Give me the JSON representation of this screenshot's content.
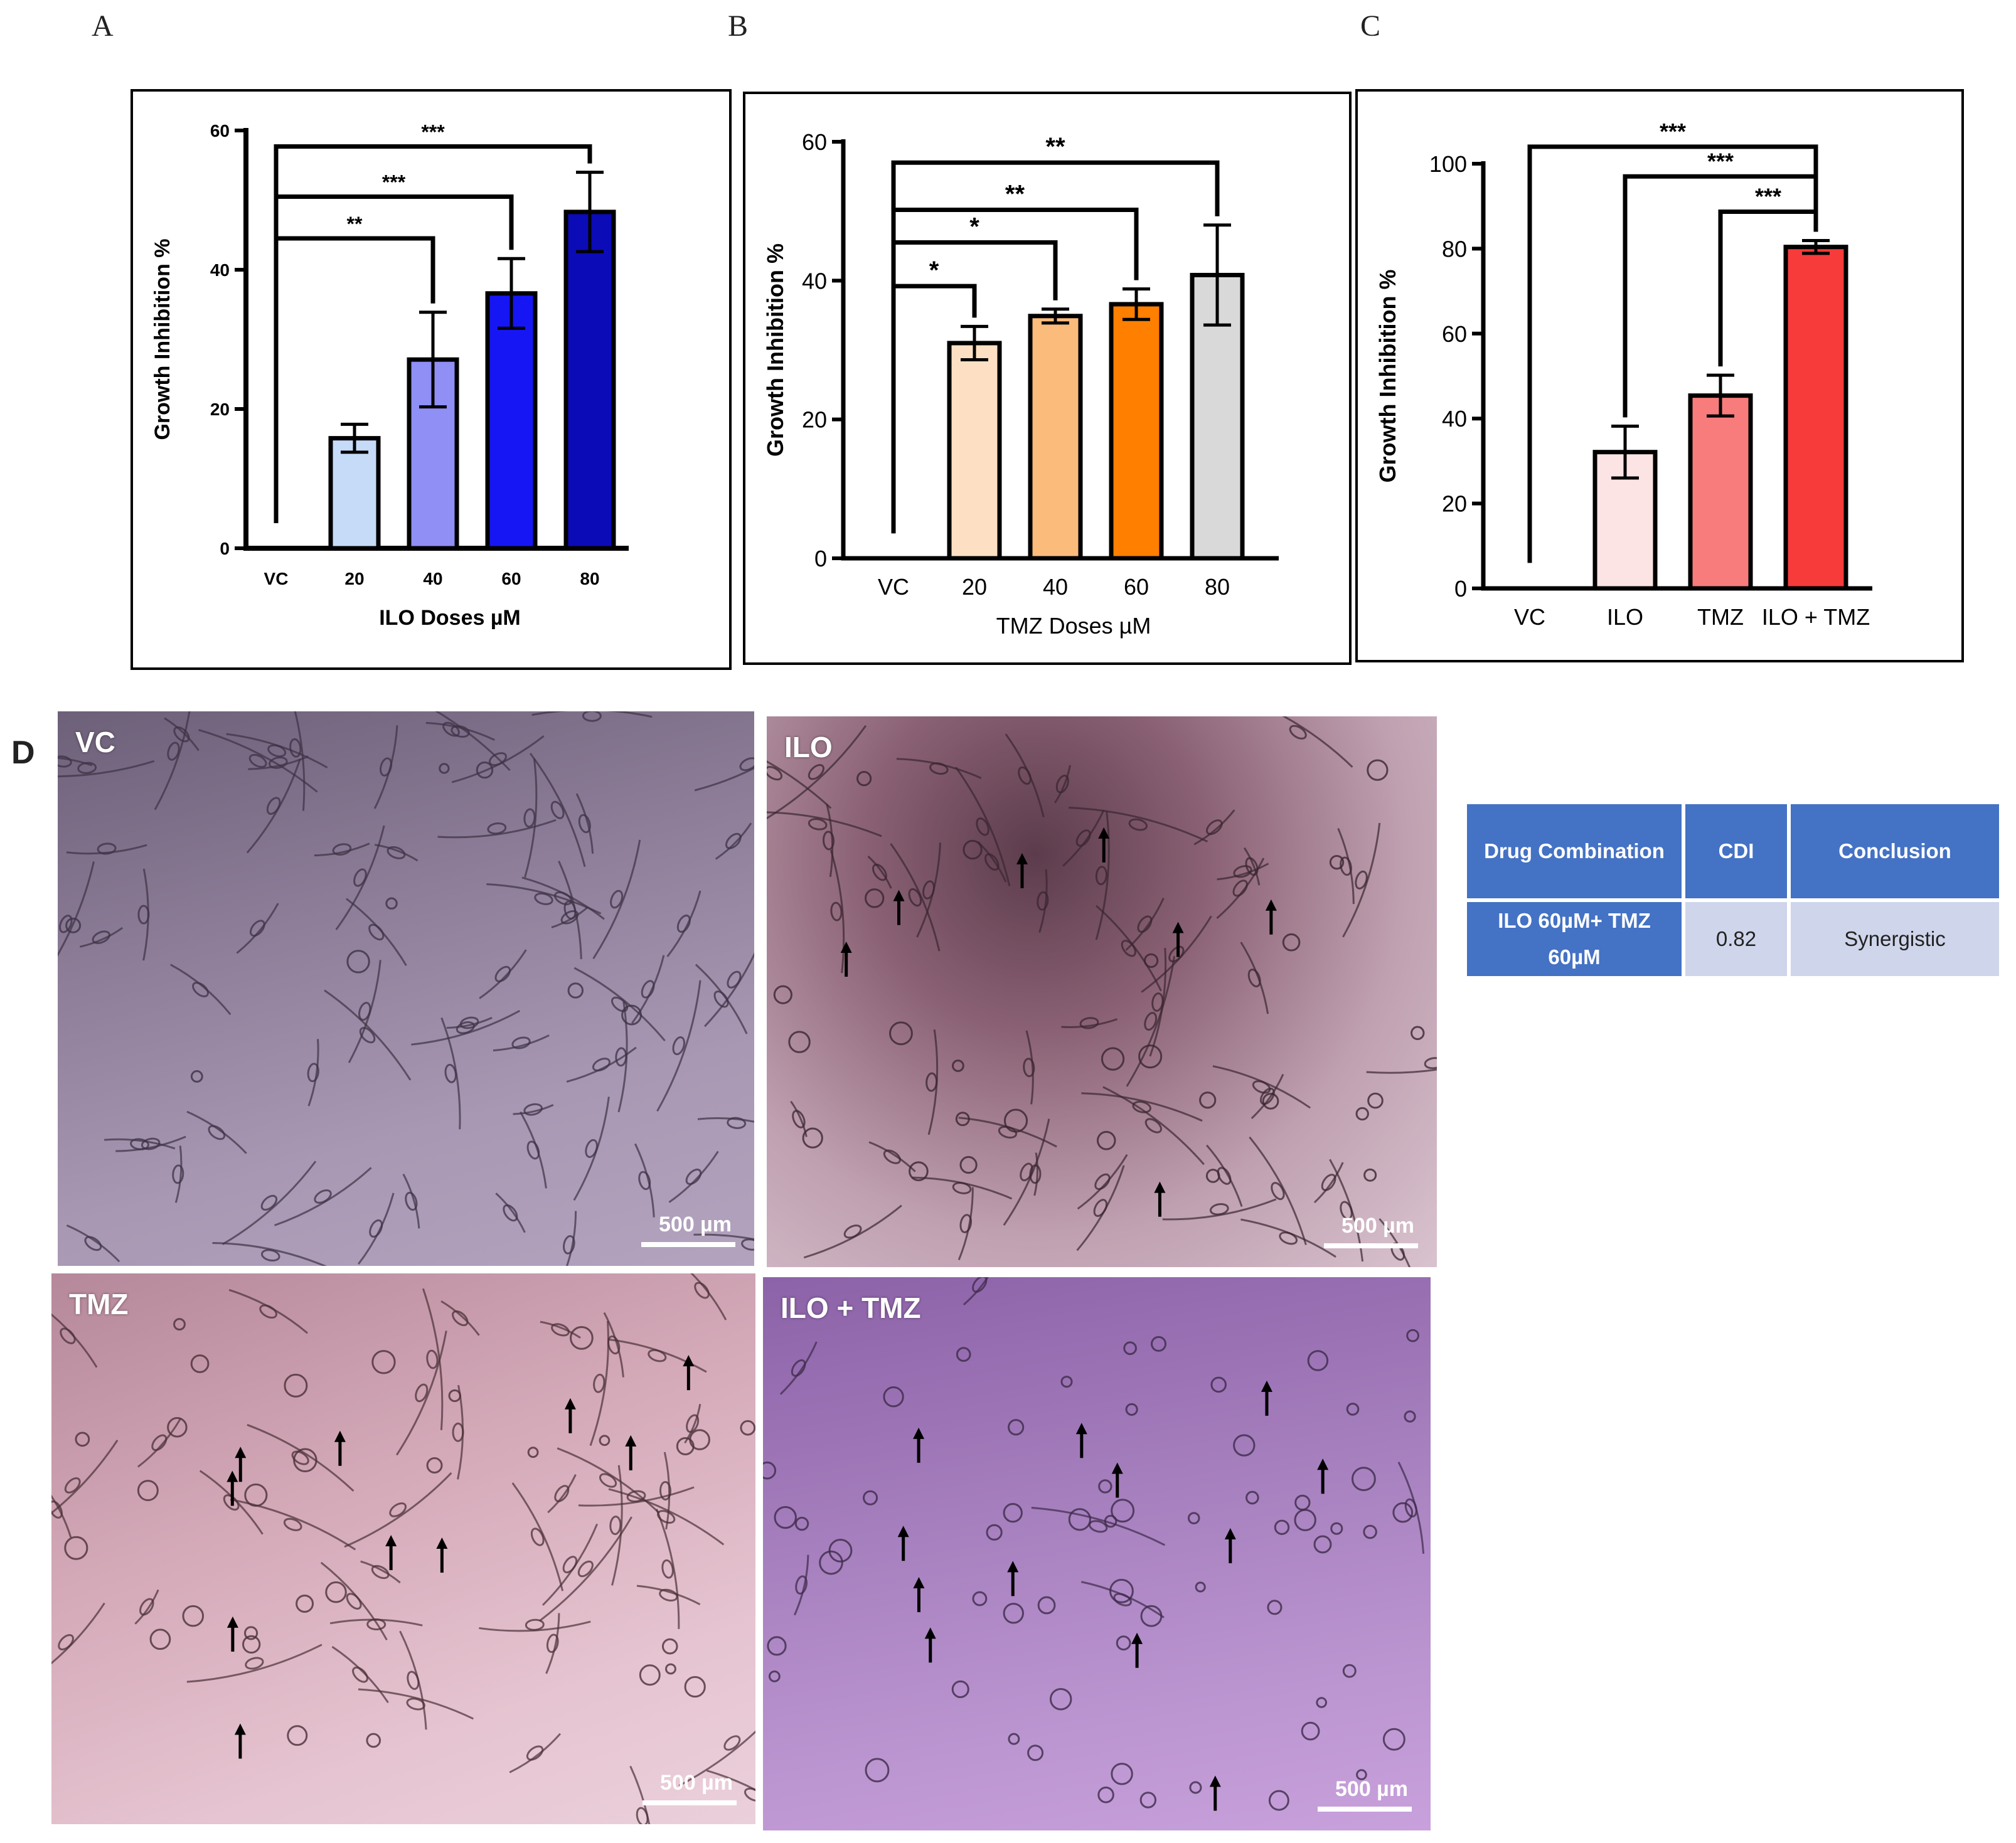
{
  "panels": {
    "a": "A",
    "b": "B",
    "c": "C",
    "d": "D"
  },
  "chart_data": [
    {
      "type": "bar",
      "panel": "A",
      "categories": [
        "VC",
        "20",
        "40",
        "60",
        "80"
      ],
      "values": [
        0,
        15.8,
        27.1,
        36.6,
        48.3
      ],
      "errors": [
        0,
        2.0,
        6.8,
        5.0,
        5.7
      ],
      "colors": [
        "#ffffff",
        "#c5dbf8",
        "#8f8ff5",
        "#1616f5",
        "#0b0bb8"
      ],
      "xlabel": "ILO  Doses µM",
      "ylabel": "Growth Inhibition %",
      "ylim": [
        0,
        60
      ],
      "yticks": [
        "0",
        "20",
        "40",
        "60"
      ],
      "significance": [
        {
          "from": "VC",
          "to": "40",
          "label": "**",
          "y": 44.5
        },
        {
          "from": "VC",
          "to": "60",
          "label": "***",
          "y": 50.5
        },
        {
          "from": "VC",
          "to": "80",
          "label": "***",
          "y": 57.7
        }
      ]
    },
    {
      "type": "bar",
      "panel": "B",
      "categories": [
        "VC",
        "20",
        "40",
        "60",
        "80"
      ],
      "values": [
        0,
        31.0,
        34.9,
        36.6,
        40.8
      ],
      "errors": [
        0,
        2.4,
        1.0,
        2.2,
        7.2
      ],
      "colors": [
        "#ffffff",
        "#fde0c4",
        "#fbbb7b",
        "#ff7f00",
        "#d9d9d9"
      ],
      "xlabel": "TMZ Doses µM",
      "ylabel": "Growth Inhibition %",
      "ylim": [
        0,
        60
      ],
      "yticks": [
        "0",
        "20",
        "40",
        "60"
      ],
      "significance": [
        {
          "from": "VC",
          "to": "20",
          "label": "*",
          "y": 39.2
        },
        {
          "from": "VC",
          "to": "40",
          "label": "*",
          "y": 45.5
        },
        {
          "from": "VC",
          "to": "60",
          "label": "**",
          "y": 50.2
        },
        {
          "from": "VC",
          "to": "80",
          "label": "**",
          "y": 57.0
        }
      ]
    },
    {
      "type": "bar",
      "panel": "C",
      "categories": [
        "VC",
        "ILO",
        "TMZ",
        "ILO  + TMZ"
      ],
      "values": [
        0,
        32.1,
        45.4,
        80.4
      ],
      "errors": [
        0,
        6.1,
        4.8,
        1.5
      ],
      "colors": [
        "#ffffff",
        "#fce3e4",
        "#f87c7c",
        "#f73a3a"
      ],
      "xlabel": "",
      "ylabel": "Growth Inhibition %",
      "ylim": [
        0,
        100
      ],
      "yticks": [
        "0",
        "20",
        "40",
        "60",
        "80",
        "100"
      ],
      "significance": [
        {
          "from": "VC",
          "to": "ILO  + TMZ",
          "label": "***",
          "y": 104.0
        },
        {
          "from": "ILO",
          "to": "ILO  + TMZ",
          "label": "***",
          "y": 97.0
        },
        {
          "from": "TMZ",
          "to": "ILO  + TMZ",
          "label": "***",
          "y": 88.7
        }
      ]
    }
  ],
  "micrographs": [
    {
      "label": "VC",
      "scale": "500 µm"
    },
    {
      "label": "ILO",
      "scale": "500 µm"
    },
    {
      "label": "TMZ",
      "scale": "500 µm"
    },
    {
      "label": "ILO + TMZ",
      "scale": "500 µm"
    }
  ],
  "table": {
    "headers": [
      "Drug Combination",
      "CDI",
      "Conclusion"
    ],
    "combination_line1": "ILO 60µM+ TMZ",
    "combination_line2": "60µM",
    "cdi": "0.82",
    "conclusion": "Synergistic"
  }
}
